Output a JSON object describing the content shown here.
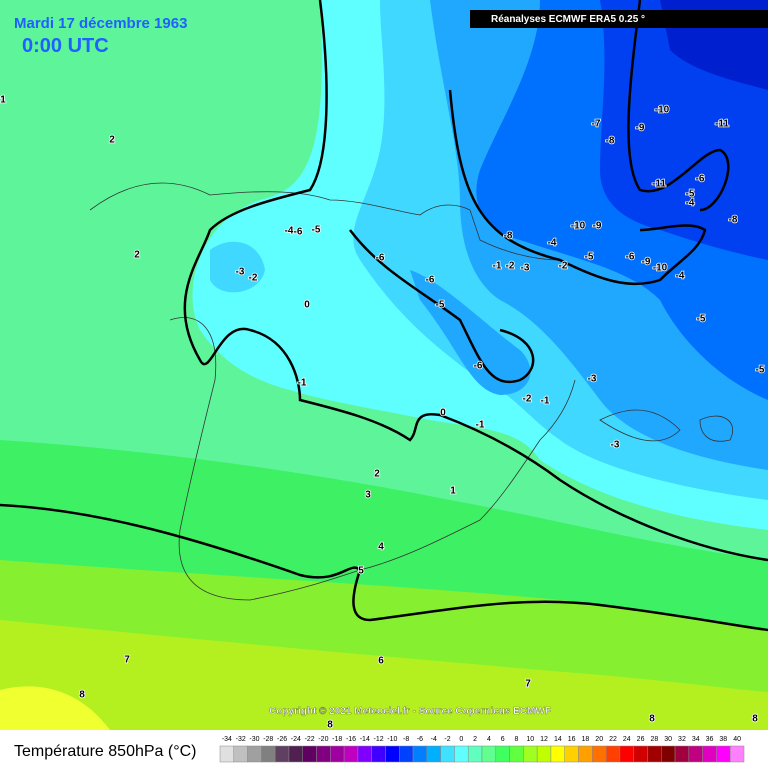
{
  "header": {
    "date": "Mardi 17 décembre 1963",
    "time": "0:00 UTC",
    "source": "Réanalyses ECMWF ERA5 0.25 °"
  },
  "copyright": "Copyright © 2021 Meteociel.fr - Source Copernicus ECMWF",
  "legend": {
    "title": "Température 850hPa (°C)",
    "ticks": [
      -34,
      -32,
      -30,
      -28,
      -26,
      -24,
      -22,
      -20,
      -18,
      -16,
      -14,
      -12,
      -10,
      -8,
      -6,
      -4,
      -2,
      0,
      2,
      4,
      6,
      8,
      10,
      12,
      14,
      16,
      18,
      20,
      22,
      24,
      26,
      28,
      30,
      32,
      34,
      36,
      38,
      40
    ],
    "colors": [
      "#e0e0e0",
      "#c0c0c0",
      "#a0a0a0",
      "#808080",
      "#604060",
      "#502050",
      "#600060",
      "#800080",
      "#a000a0",
      "#c000c0",
      "#8000ff",
      "#4000ff",
      "#0000ff",
      "#0040ff",
      "#0080ff",
      "#00b0ff",
      "#40e0ff",
      "#60ffff",
      "#60ffc0",
      "#60ff90",
      "#40ff60",
      "#60ff40",
      "#a0ff20",
      "#c0ff00",
      "#ffff00",
      "#ffd000",
      "#ffa000",
      "#ff7000",
      "#ff4000",
      "#ff0000",
      "#d00000",
      "#a00000",
      "#800000",
      "#a00040",
      "#c00080",
      "#e000c0",
      "#ff00ff",
      "#ff80ff"
    ]
  },
  "map": {
    "contour_labels": [
      "1",
      "2",
      "2",
      "-3",
      "-2",
      "0",
      "-1",
      "-4",
      "-6",
      "-5",
      "-6",
      "-6",
      "-5",
      "-6",
      "-2",
      "-1",
      "0",
      "-1",
      "-1",
      "-2",
      "-3",
      "-2",
      "-5",
      "-6",
      "-9",
      "-10",
      "-4",
      "-4",
      "-8",
      "-10",
      "-9",
      "-7",
      "-8",
      "-9",
      "-10",
      "-11",
      "-11",
      "-6",
      "-5",
      "-4",
      "-8",
      "-5",
      "-5",
      "-3",
      "-3",
      "2",
      "3",
      "1",
      "4",
      "5",
      "6",
      "7",
      "7",
      "8",
      "8",
      "8",
      "8"
    ]
  }
}
